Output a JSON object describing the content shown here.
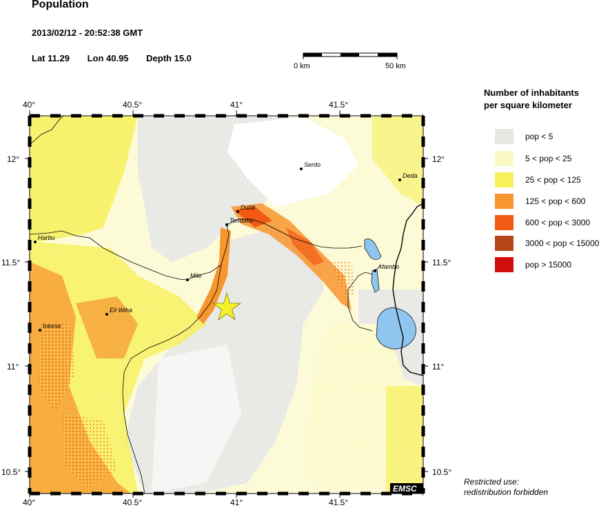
{
  "header": {
    "title": "Population",
    "datetime": "2013/02/12 - 20:52:38 GMT",
    "lat": "Lat 11.29",
    "lon": "Lon  40.95",
    "depth": "Depth  15.0"
  },
  "scale_bar": {
    "left_label": "0 km",
    "right_label": "50 km"
  },
  "axes": {
    "top_lon": [
      "40°",
      "40.5°",
      "41°",
      "41.5°"
    ],
    "bottom_lon": [
      "40°",
      "40.5°",
      "41°",
      "41.5°"
    ],
    "left_lat": [
      "12°",
      "11.5°",
      "11°",
      "10.5°"
    ],
    "right_lat": [
      "12°",
      "11.5°",
      "11°",
      "10.5°"
    ]
  },
  "cities": [
    {
      "name": "Serdo"
    },
    {
      "name": "Deda"
    },
    {
      "name": "Dubti"
    },
    {
      "name": "Tendaho"
    },
    {
      "name": "Harbu"
    },
    {
      "name": "Mile"
    },
    {
      "name": "Afambo"
    },
    {
      "name": "Eli Wiha"
    },
    {
      "name": "Inkese"
    }
  ],
  "epicenter": {
    "lat": 11.29,
    "lon": 40.95,
    "symbol": "star",
    "color": "#f5f22a"
  },
  "logo": "EMSC",
  "legend": {
    "title_line1": "Number of inhabitants",
    "title_line2": "per square kilometer",
    "items": [
      {
        "label": "pop < 5",
        "color": "#e6e6e2"
      },
      {
        "label": "5 < pop < 25",
        "color": "#fbf9c6"
      },
      {
        "label": "25 < pop < 125",
        "color": "#f7f05b"
      },
      {
        "label": "125 < pop < 600",
        "color": "#f7952f"
      },
      {
        "label": "600 < pop < 3000",
        "color": "#f25a13"
      },
      {
        "label": "3000 < pop < 15000",
        "color": "#b7451a"
      },
      {
        "label": "pop > 15000",
        "color": "#d20f0f"
      }
    ]
  },
  "footer": {
    "line1": "Restricted use:",
    "line2": "redistribution forbidden"
  }
}
